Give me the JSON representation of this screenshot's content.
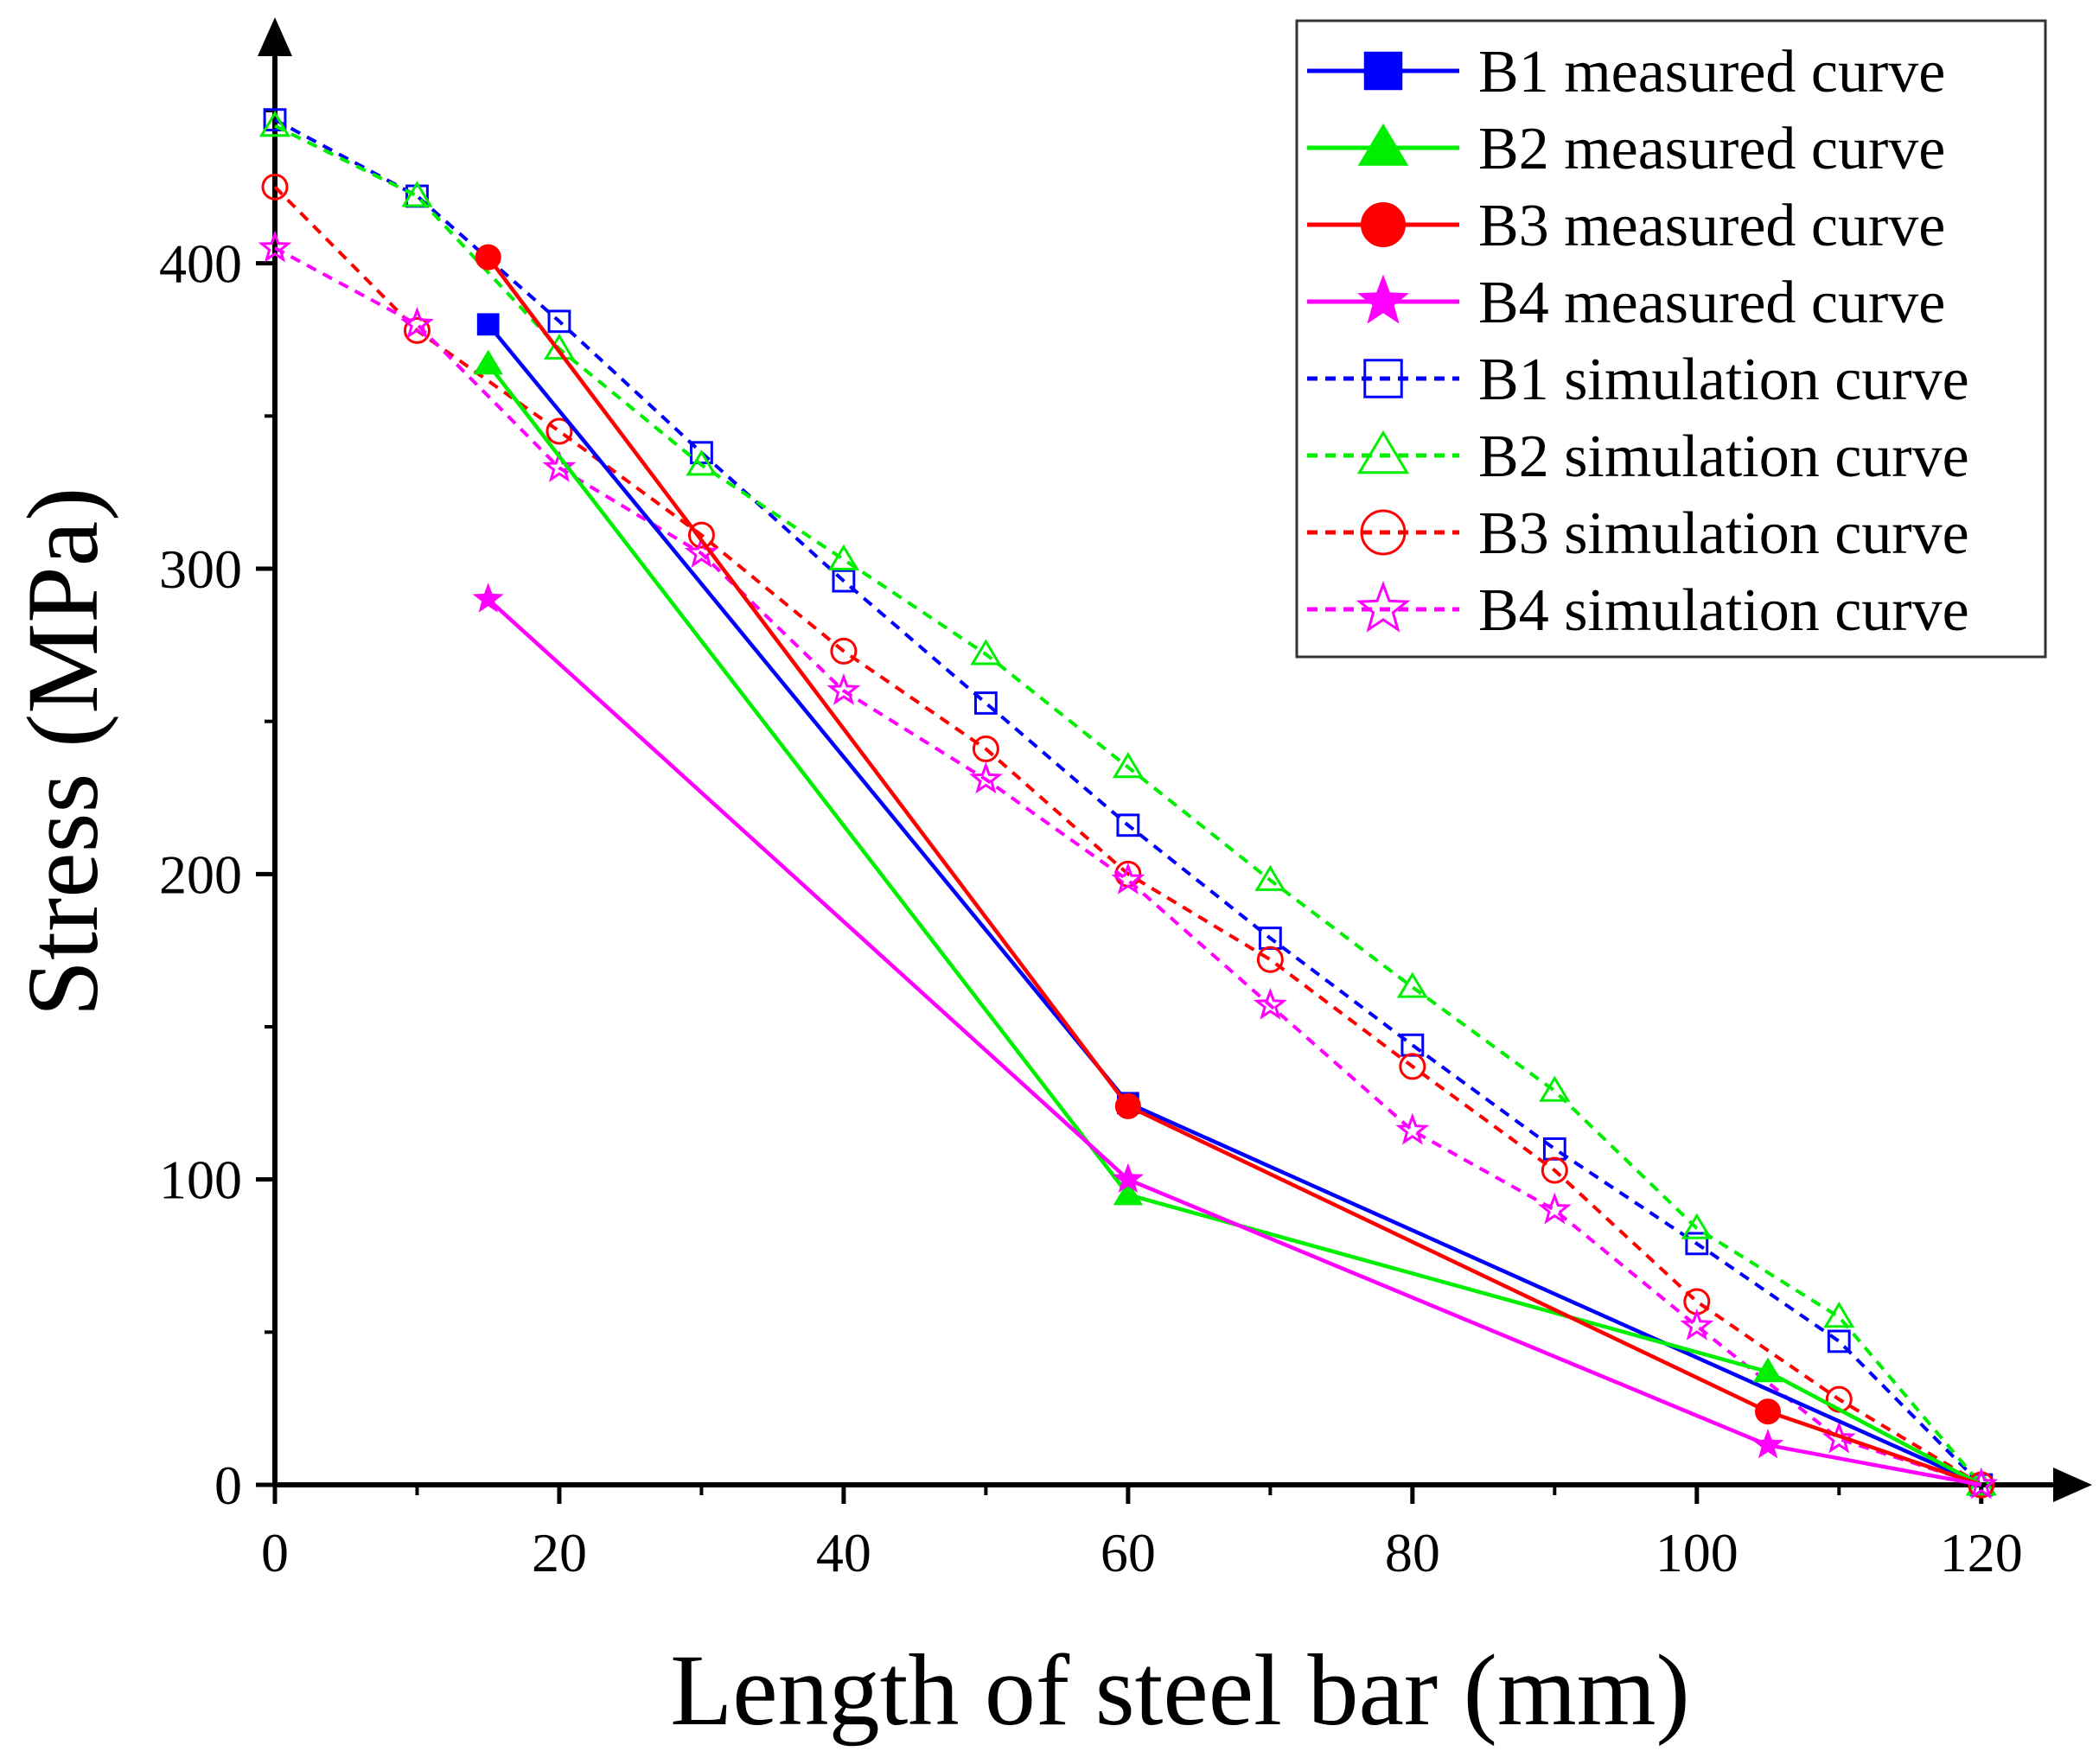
{
  "chart_data": {
    "type": "line",
    "title": "",
    "xlabel": "Length of steel bar (mm)",
    "ylabel": "Stress (MPa)",
    "xlim": [
      0,
      125
    ],
    "ylim": [
      0,
      480
    ],
    "xticks": [
      0,
      20,
      40,
      60,
      80,
      100,
      120
    ],
    "yticks": [
      0,
      100,
      200,
      300,
      400
    ],
    "grid": false,
    "legend_position": "top-right",
    "series": [
      {
        "name": "B1 measured curve",
        "color": "#0000ff",
        "style": "solid",
        "marker": "square",
        "filled": true,
        "x": [
          15,
          60,
          120
        ],
        "y": [
          380,
          125,
          0
        ]
      },
      {
        "name": "B2 measured curve",
        "color": "#00ee00",
        "style": "solid",
        "marker": "triangle",
        "filled": true,
        "x": [
          15,
          60,
          105,
          120
        ],
        "y": [
          367,
          95,
          37,
          0
        ]
      },
      {
        "name": "B3 measured curve",
        "color": "#ff0000",
        "style": "solid",
        "marker": "circle",
        "filled": true,
        "x": [
          15,
          60,
          105,
          120
        ],
        "y": [
          402,
          124,
          24,
          0
        ]
      },
      {
        "name": "B4 measured curve",
        "color": "#ff00ff",
        "style": "solid",
        "marker": "star",
        "filled": true,
        "x": [
          15,
          60,
          105,
          120
        ],
        "y": [
          290,
          100,
          13,
          0
        ]
      },
      {
        "name": "B1 simulation curve",
        "color": "#0000ff",
        "style": "dashed",
        "marker": "square",
        "filled": false,
        "x": [
          0,
          10,
          20,
          30,
          40,
          50,
          60,
          70,
          80,
          90,
          100,
          110,
          120
        ],
        "y": [
          447,
          422,
          381,
          338,
          296,
          256,
          216,
          179,
          144,
          110,
          79,
          47,
          0
        ]
      },
      {
        "name": "B2 simulation curve",
        "color": "#00ee00",
        "style": "dashed",
        "marker": "triangle",
        "filled": false,
        "x": [
          0,
          10,
          20,
          30,
          40,
          50,
          60,
          70,
          80,
          90,
          100,
          110,
          120
        ],
        "y": [
          445,
          422,
          372,
          334,
          303,
          272,
          235,
          198,
          163,
          129,
          84,
          55,
          0
        ]
      },
      {
        "name": "B3 simulation curve",
        "color": "#ff0000",
        "style": "dashed",
        "marker": "circle",
        "filled": false,
        "x": [
          0,
          10,
          20,
          30,
          40,
          50,
          60,
          70,
          80,
          90,
          100,
          110,
          120
        ],
        "y": [
          425,
          378,
          345,
          311,
          273,
          241,
          200,
          172,
          137,
          103,
          60,
          28,
          0
        ]
      },
      {
        "name": "B4 simulation curve",
        "color": "#ff00ff",
        "style": "dashed",
        "marker": "star",
        "filled": false,
        "x": [
          0,
          10,
          20,
          30,
          40,
          50,
          60,
          70,
          80,
          90,
          100,
          110,
          120
        ],
        "y": [
          405,
          380,
          333,
          305,
          260,
          231,
          198,
          157,
          116,
          90,
          52,
          15,
          0
        ]
      }
    ]
  }
}
